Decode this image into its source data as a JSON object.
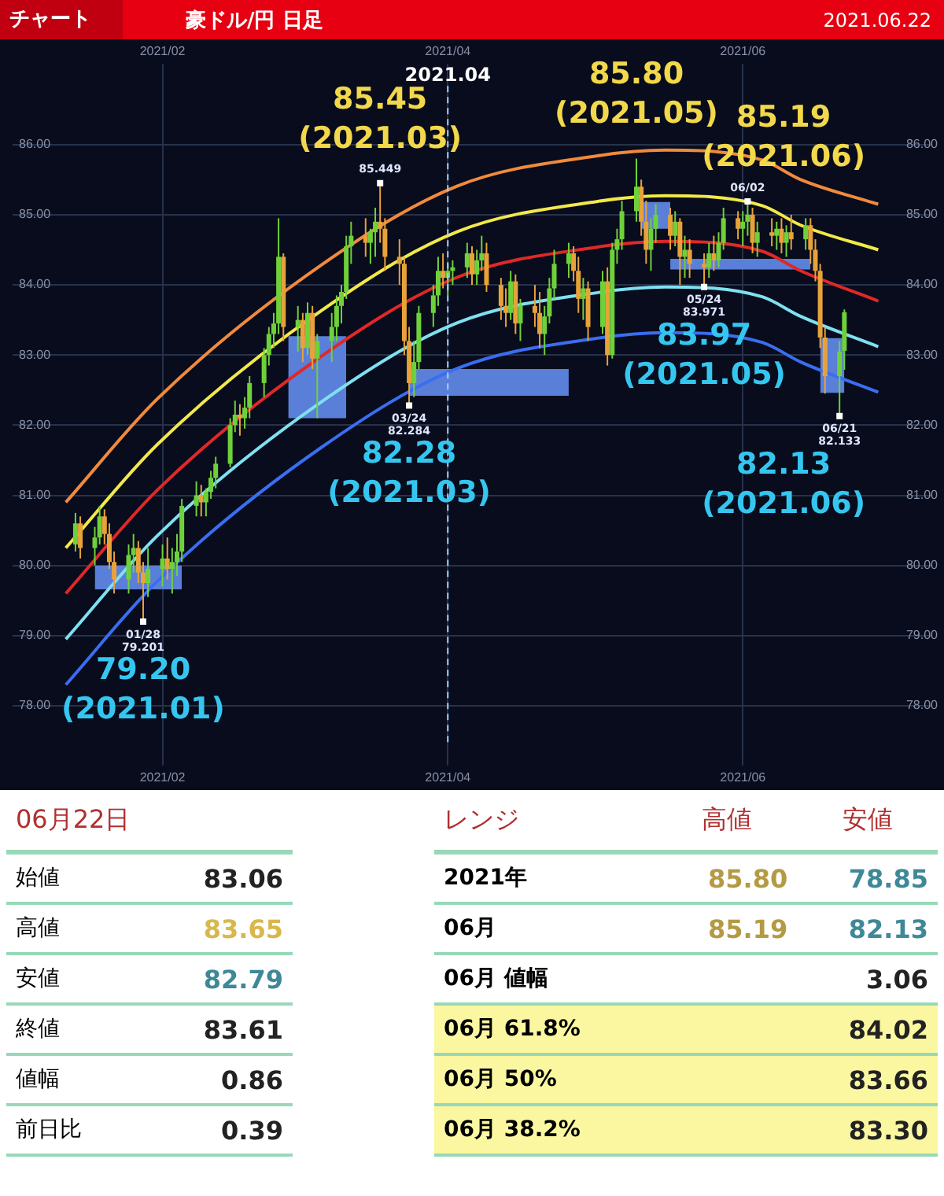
{
  "chart_data": [
    {
      "type": "candlestick",
      "title": "豪ドル/円 日足",
      "subtitle": "2021.06.22",
      "colors": [
        "#6fd13a",
        "#e8a23a",
        "#6fd13a",
        "#6fd13a",
        "#e8a23a",
        "#e8a23a",
        "#e8a23a",
        "#6fd13a",
        "#6fd13a",
        "#e8a23a",
        "#e8a23a",
        "#6fd13a",
        "#6fd13a",
        "#e8a23a",
        "#6fd13a",
        "#6fd13a",
        "#6fd13a",
        "#6fd13a",
        "#e8a23a",
        "#6fd13a",
        "#6fd13a",
        "#6fd13a",
        "#6fd13a",
        "#6fd13a",
        "#e8a23a",
        "#6fd13a",
        "#6fd13a",
        "#6fd13a",
        "#6fd13a",
        "#6fd13a",
        "#6fd13a",
        "#e8a23a",
        "#6fd13a",
        "#e8a23a",
        "#6fd13a",
        "#e8a23a",
        "#6fd13a",
        "#6fd13a",
        "#6fd13a",
        "#6fd13a",
        "#6fd13a",
        "#6fd13a",
        "#e8a23a",
        "#6fd13a",
        "#6fd13a",
        "#e8a23a",
        "#e8a23a",
        "#e8a23a",
        "#e8a23a",
        "#e8a23a",
        "#6fd13a",
        "#6fd13a",
        "#6fd13a",
        "#6fd13a",
        "#e8a23a",
        "#6fd13a",
        "#6fd13a",
        "#6fd13a",
        "#e8a23a",
        "#6fd13a",
        "#6fd13a",
        "#e8a23a",
        "#e8a23a",
        "#e8a23a",
        "#6fd13a",
        "#e8a23a",
        "#6fd13a",
        "#e8a23a",
        "#e8a23a",
        "#6fd13a",
        "#6fd13a",
        "#6fd13a",
        "#6fd13a",
        "#e8a23a",
        "#e8a23a",
        "#6fd13a",
        "#e8a23a",
        "#6fd13a",
        "#e8a23a",
        "#6fd13a",
        "#6fd13a",
        "#6fd13a",
        "#6fd13a",
        "#e8a23a",
        "#e8a23a",
        "#6fd13a",
        "#6fd13a",
        "#e8a23a",
        "#6fd13a",
        "#e8a23a",
        "#6fd13a",
        "#e8a23a",
        "#e8a23a",
        "#6fd13a",
        "#e8a23a",
        "#6fd13a",
        "#6fd13a",
        "#e8a23a",
        "#6fd13a",
        "#6fd13a",
        "#e8a23a",
        "#6fd13a",
        "#e8a23a",
        "#6fd13a",
        "#e8a23a",
        "#6fd13a",
        "#e8a23a",
        "#6fd13a",
        "#e8a23a",
        "#e8a23a",
        "#e8a23a",
        "#e8a23a",
        "#6fd13a",
        "#6fd13a"
      ],
      "annotations": [
        "チャート",
        {
          "text": "79.20\n(2021.01)",
          "x": "2021-01-28",
          "y": 79.2
        },
        {
          "text": "85.45\n(2021.03)",
          "x": "2021-03-18",
          "y": 85.45
        },
        {
          "text": "82.28\n(2021.03)",
          "x": "2021-03-24",
          "y": 82.28
        },
        {
          "text": "85.80\n(2021.05)",
          "x": "2021-05-10",
          "y": 85.8
        },
        {
          "text": "83.97\n(2021.05)",
          "x": "2021-05-24",
          "y": 83.97
        },
        {
          "text": "85.19\n(2021.06)",
          "x": "2021-06-02",
          "y": 85.19
        },
        {
          "text": "82.13\n(2021.06)",
          "x": "2021-06-21",
          "y": 82.13
        },
        {
          "text": "01/28\n79.201",
          "x": "2021-01-28",
          "y": 79.2
        },
        {
          "text": "85.449",
          "x": "2021-03-18",
          "y": 85.45
        },
        {
          "text": "03/24\n82.284",
          "x": "2021-03-24",
          "y": 82.28
        },
        {
          "text": "05/24\n83.971",
          "x": "2021-05-24",
          "y": 83.97
        },
        {
          "text": "06/02",
          "x": "2021-06-02",
          "y": 85.19
        },
        {
          "text": "06/21\n82.133",
          "x": "2021-06-21",
          "y": 82.13
        }
      ],
      "x": [
        "2021-01-14",
        "2021-01-15",
        "2021-01-18",
        "2021-01-19",
        "2021-01-20",
        "2021-01-21",
        "2021-01-22",
        "2021-01-25",
        "2021-01-26",
        "2021-01-27",
        "2021-01-28",
        "2021-01-29",
        "2021-02-01",
        "2021-02-02",
        "2021-02-03",
        "2021-02-04",
        "2021-02-05",
        "2021-02-08",
        "2021-02-09",
        "2021-02-10",
        "2021-02-11",
        "2021-02-12",
        "2021-02-15",
        "2021-02-16",
        "2021-02-17",
        "2021-02-18",
        "2021-02-19",
        "2021-02-22",
        "2021-02-23",
        "2021-02-24",
        "2021-02-25",
        "2021-02-26",
        "2021-03-01",
        "2021-03-02",
        "2021-03-03",
        "2021-03-04",
        "2021-03-05",
        "2021-03-08",
        "2021-03-09",
        "2021-03-10",
        "2021-03-11",
        "2021-03-12",
        "2021-03-15",
        "2021-03-16",
        "2021-03-17",
        "2021-03-18",
        "2021-03-19",
        "2021-03-22",
        "2021-03-23",
        "2021-03-24",
        "2021-03-25",
        "2021-03-26",
        "2021-03-29",
        "2021-03-30",
        "2021-03-31",
        "2021-04-01",
        "2021-04-02",
        "2021-04-05",
        "2021-04-06",
        "2021-04-07",
        "2021-04-08",
        "2021-04-09",
        "2021-04-12",
        "2021-04-13",
        "2021-04-14",
        "2021-04-15",
        "2021-04-16",
        "2021-04-19",
        "2021-04-20",
        "2021-04-21",
        "2021-04-22",
        "2021-04-23",
        "2021-04-26",
        "2021-04-27",
        "2021-04-28",
        "2021-04-29",
        "2021-04-30",
        "2021-05-03",
        "2021-05-04",
        "2021-05-05",
        "2021-05-06",
        "2021-05-07",
        "2021-05-10",
        "2021-05-11",
        "2021-05-12",
        "2021-05-13",
        "2021-05-14",
        "2021-05-17",
        "2021-05-18",
        "2021-05-19",
        "2021-05-20",
        "2021-05-21",
        "2021-05-24",
        "2021-05-25",
        "2021-05-26",
        "2021-05-27",
        "2021-05-28",
        "2021-05-31",
        "2021-06-01",
        "2021-06-02",
        "2021-06-03",
        "2021-06-04",
        "2021-06-07",
        "2021-06-08",
        "2021-06-09",
        "2021-06-10",
        "2021-06-11",
        "2021-06-14",
        "2021-06-15",
        "2021-06-16",
        "2021-06-17",
        "2021-06-18",
        "2021-06-21",
        "2021-06-22"
      ],
      "ohlc": [
        [
          80.3,
          80.75,
          80.2,
          80.6
        ],
        [
          80.6,
          80.7,
          80.1,
          80.25
        ],
        [
          80.25,
          80.55,
          80.0,
          80.4
        ],
        [
          80.4,
          80.85,
          80.3,
          80.7
        ],
        [
          80.7,
          80.8,
          80.3,
          80.45
        ],
        [
          80.45,
          80.6,
          79.95,
          80.05
        ],
        [
          80.05,
          80.2,
          79.6,
          79.8
        ],
        [
          79.8,
          80.3,
          79.6,
          80.15
        ],
        [
          80.15,
          80.45,
          79.9,
          80.25
        ],
        [
          80.25,
          80.35,
          79.75,
          79.9
        ],
        [
          79.9,
          80.05,
          79.2,
          79.75
        ],
        [
          79.75,
          80.25,
          79.55,
          79.95
        ],
        [
          79.95,
          80.3,
          79.7,
          80.1
        ],
        [
          80.1,
          80.4,
          79.8,
          79.95
        ],
        [
          79.95,
          80.25,
          79.6,
          80.05
        ],
        [
          80.05,
          80.45,
          79.85,
          80.2
        ],
        [
          80.2,
          80.95,
          80.05,
          80.85
        ],
        [
          80.85,
          81.2,
          80.7,
          81.0
        ],
        [
          81.0,
          81.15,
          80.7,
          80.9
        ],
        [
          80.9,
          81.1,
          80.7,
          81.05
        ],
        [
          81.05,
          81.35,
          80.95,
          81.25
        ],
        [
          81.25,
          81.55,
          81.1,
          81.45
        ],
        [
          81.45,
          82.1,
          81.4,
          82.0
        ],
        [
          82.0,
          82.35,
          81.9,
          82.15
        ],
        [
          82.15,
          82.3,
          81.85,
          82.1
        ],
        [
          82.1,
          82.4,
          81.95,
          82.25
        ],
        [
          82.25,
          82.7,
          82.1,
          82.6
        ],
        [
          82.6,
          83.1,
          82.4,
          83.0
        ],
        [
          83.0,
          83.4,
          82.85,
          83.3
        ],
        [
          83.3,
          83.6,
          83.1,
          83.45
        ],
        [
          83.45,
          84.95,
          83.3,
          84.4
        ],
        [
          84.4,
          84.45,
          83.2,
          83.4
        ],
        [
          83.4,
          83.7,
          83.05,
          83.5
        ],
        [
          83.5,
          83.6,
          82.9,
          83.1
        ],
        [
          83.1,
          83.75,
          83.0,
          83.6
        ],
        [
          83.6,
          83.7,
          82.8,
          82.95
        ],
        [
          82.95,
          83.3,
          82.1,
          83.2
        ],
        [
          83.2,
          83.6,
          82.9,
          83.4
        ],
        [
          83.4,
          83.85,
          83.2,
          83.7
        ],
        [
          83.7,
          84.0,
          83.45,
          83.9
        ],
        [
          83.9,
          84.7,
          83.8,
          84.55
        ],
        [
          84.55,
          84.9,
          84.3,
          84.7
        ],
        [
          84.7,
          84.95,
          84.4,
          84.6
        ],
        [
          84.6,
          84.8,
          84.3,
          84.75
        ],
        [
          84.75,
          85.1,
          84.4,
          84.9
        ],
        [
          84.9,
          85.45,
          84.6,
          84.8
        ],
        [
          84.8,
          84.95,
          84.2,
          84.4
        ],
        [
          84.4,
          84.65,
          84.0,
          84.3
        ],
        [
          84.3,
          84.4,
          83.0,
          83.2
        ],
        [
          83.2,
          83.4,
          82.28,
          82.6
        ],
        [
          82.6,
          83.2,
          82.4,
          82.9
        ],
        [
          82.9,
          83.7,
          82.8,
          83.6
        ],
        [
          83.6,
          84.0,
          83.4,
          83.85
        ],
        [
          83.85,
          84.4,
          83.7,
          84.2
        ],
        [
          84.2,
          84.45,
          83.95,
          84.1
        ],
        [
          84.1,
          84.3,
          83.85,
          84.2
        ],
        [
          84.2,
          84.35,
          84.0,
          84.25
        ],
        [
          84.25,
          84.6,
          84.1,
          84.45
        ],
        [
          84.45,
          84.55,
          84.0,
          84.15
        ],
        [
          84.15,
          84.5,
          84.0,
          84.35
        ],
        [
          84.35,
          84.7,
          84.2,
          84.45
        ],
        [
          84.45,
          84.6,
          83.9,
          84.0
        ],
        [
          84.0,
          84.1,
          83.5,
          83.7
        ],
        [
          83.7,
          83.95,
          83.4,
          83.6
        ],
        [
          83.6,
          84.2,
          83.5,
          84.05
        ],
        [
          84.05,
          84.15,
          83.3,
          83.45
        ],
        [
          83.45,
          83.8,
          83.2,
          83.7
        ],
        [
          83.7,
          84.0,
          83.4,
          83.6
        ],
        [
          83.6,
          83.9,
          83.1,
          83.3
        ],
        [
          83.3,
          83.7,
          83.0,
          83.55
        ],
        [
          83.55,
          84.1,
          83.45,
          83.95
        ],
        [
          83.95,
          84.5,
          83.8,
          84.3
        ],
        [
          84.3,
          84.6,
          84.1,
          84.45
        ],
        [
          84.45,
          84.55,
          84.05,
          84.2
        ],
        [
          84.2,
          84.4,
          83.6,
          83.8
        ],
        [
          83.8,
          84.1,
          83.5,
          83.95
        ],
        [
          83.95,
          84.05,
          83.2,
          83.4
        ],
        [
          83.4,
          84.2,
          83.3,
          84.05
        ],
        [
          84.05,
          84.25,
          82.85,
          83.0
        ],
        [
          83.0,
          84.6,
          82.95,
          84.5
        ],
        [
          84.5,
          84.8,
          84.3,
          84.65
        ],
        [
          84.65,
          85.2,
          84.5,
          85.05
        ],
        [
          85.05,
          85.8,
          84.9,
          85.4
        ],
        [
          85.4,
          85.5,
          84.7,
          84.9
        ],
        [
          84.9,
          85.2,
          84.3,
          84.5
        ],
        [
          84.5,
          84.95,
          84.2,
          84.8
        ],
        [
          84.8,
          85.15,
          84.6,
          85.0
        ],
        [
          85.0,
          85.1,
          84.5,
          84.7
        ],
        [
          84.7,
          85.05,
          84.55,
          84.9
        ],
        [
          84.9,
          84.95,
          84.0,
          84.4
        ],
        [
          84.4,
          84.7,
          84.1,
          84.5
        ],
        [
          84.5,
          84.65,
          84.1,
          84.3
        ],
        [
          84.3,
          84.45,
          83.97,
          84.25
        ],
        [
          84.25,
          84.6,
          84.1,
          84.45
        ],
        [
          84.45,
          84.7,
          84.2,
          84.35
        ],
        [
          84.35,
          84.75,
          84.25,
          84.6
        ],
        [
          84.6,
          85.1,
          84.5,
          84.95
        ],
        [
          84.95,
          85.05,
          84.65,
          84.8
        ],
        [
          84.8,
          85.05,
          84.55,
          84.9
        ],
        [
          84.9,
          85.19,
          84.7,
          85.0
        ],
        [
          85.0,
          85.1,
          84.45,
          84.6
        ],
        [
          84.6,
          84.9,
          84.4,
          84.75
        ],
        [
          84.75,
          84.95,
          84.55,
          84.7
        ],
        [
          84.7,
          84.9,
          84.5,
          84.8
        ],
        [
          84.8,
          84.95,
          84.45,
          84.6
        ],
        [
          84.6,
          84.85,
          84.4,
          84.75
        ],
        [
          84.75,
          85.0,
          84.5,
          84.65
        ],
        [
          84.65,
          84.95,
          84.5,
          84.85
        ],
        [
          84.85,
          84.95,
          84.3,
          84.5
        ],
        [
          84.5,
          84.65,
          84.05,
          84.2
        ],
        [
          84.2,
          84.3,
          83.1,
          83.25
        ],
        [
          83.25,
          83.4,
          82.45,
          82.7
        ],
        [
          82.7,
          83.2,
          82.13,
          83.05
        ],
        [
          83.06,
          83.65,
          82.79,
          83.61
        ]
      ],
      "series": [
        {
          "type": "area",
          "color": "#5a7fd8",
          "x": [
            "2021-01-18",
            "2021-02-05"
          ],
          "values": [
            null,
            null
          ],
          "upper": [
            80.0,
            80.0
          ],
          "lower": [
            79.66,
            79.66
          ]
        },
        {
          "type": "area",
          "color": "#5a7fd8",
          "x": [
            "2021-02-27",
            "2021-03-11"
          ],
          "values": [
            null,
            null
          ],
          "upper": [
            83.27,
            83.27
          ],
          "lower": [
            82.1,
            82.1
          ]
        },
        {
          "type": "area",
          "color": "#5a7fd8",
          "x": [
            "2021-03-24",
            "2021-04-26"
          ],
          "values": [
            null,
            null
          ],
          "upper": [
            82.8,
            82.8
          ],
          "lower": [
            82.42,
            82.42
          ]
        },
        {
          "type": "area",
          "color": "#5a7fd8",
          "x": [
            "2021-05-11",
            "2021-05-17"
          ],
          "values": [
            null,
            null
          ],
          "upper": [
            85.18,
            85.18
          ],
          "lower": [
            84.8,
            84.8
          ]
        },
        {
          "type": "area",
          "color": "#5a7fd8",
          "x": [
            "2021-05-17",
            "2021-06-15"
          ],
          "values": [
            null,
            null
          ],
          "upper": [
            84.37,
            84.37
          ],
          "lower": [
            84.22,
            84.22
          ]
        },
        {
          "type": "area",
          "color": "#5a7fd8",
          "x": [
            "2021-06-17",
            "2021-06-22"
          ],
          "values": [
            null,
            null
          ],
          "upper": [
            83.24,
            83.24
          ],
          "lower": [
            82.46,
            82.46
          ]
        },
        {
          "type": "line",
          "color": "#f08a3c",
          "x": [
            "2021-01-12",
            "2021-01-31",
            "2021-03-06",
            "2021-04-03",
            "2021-05-02",
            "2021-05-16",
            "2021-06-05",
            "2021-06-13",
            "2021-06-29"
          ],
          "values": [
            80.9,
            82.38,
            84.29,
            85.41,
            85.84,
            85.92,
            85.78,
            85.5,
            85.15
          ]
        },
        {
          "type": "line",
          "color": "#f2e94a",
          "x": [
            "2021-01-12",
            "2021-01-31",
            "2021-03-06",
            "2021-04-03",
            "2021-05-02",
            "2021-05-16",
            "2021-06-05",
            "2021-06-13",
            "2021-06-29"
          ],
          "values": [
            80.25,
            81.73,
            83.64,
            84.76,
            85.19,
            85.27,
            85.13,
            84.85,
            84.5
          ]
        },
        {
          "type": "line",
          "color": "#e02828",
          "x": [
            "2021-01-12",
            "2021-01-31",
            "2021-03-06",
            "2021-04-03",
            "2021-05-02",
            "2021-05-16",
            "2021-06-05",
            "2021-06-13",
            "2021-06-29"
          ],
          "values": [
            79.6,
            81.08,
            82.99,
            84.11,
            84.54,
            84.62,
            84.48,
            84.2,
            83.77
          ]
        },
        {
          "type": "line",
          "color": "#7fe0f0",
          "x": [
            "2021-01-12",
            "2021-01-31",
            "2021-03-06",
            "2021-04-03",
            "2021-05-02",
            "2021-05-16",
            "2021-06-05",
            "2021-06-13",
            "2021-06-29"
          ],
          "values": [
            78.95,
            80.43,
            82.34,
            83.46,
            83.89,
            83.97,
            83.83,
            83.55,
            83.12
          ]
        },
        {
          "type": "line",
          "color": "#3a6ef0",
          "x": [
            "2021-01-12",
            "2021-01-31",
            "2021-03-06",
            "2021-04-03",
            "2021-05-02",
            "2021-05-16",
            "2021-06-05",
            "2021-06-13",
            "2021-06-29"
          ],
          "values": [
            78.3,
            79.78,
            81.69,
            82.81,
            83.24,
            83.32,
            83.18,
            82.9,
            82.47
          ]
        }
      ],
      "ref_lines": [
        {
          "axis": "x",
          "value": "2021-04-01",
          "label": "2021.04",
          "color": "#9fd0ff",
          "line_style": "dashed"
        }
      ],
      "xlim": [
        "2021-01-01",
        "2021-07-10"
      ],
      "xticks": [
        {
          "value": "2021-02-01",
          "label": "2021/02"
        },
        {
          "value": "2021-04-01",
          "label": "2021/04"
        },
        {
          "value": "2021-06-01",
          "label": "2021/06"
        }
      ],
      "x2lim": [
        "2021-01-01",
        "2021-07-10"
      ],
      "x2ticks": [
        {
          "value": "2021-02-01",
          "label": "2021/02"
        },
        {
          "value": "2021-04-01",
          "label": "2021/04"
        },
        {
          "value": "2021-06-01",
          "label": "2021/06"
        }
      ],
      "ylim": [
        77.15,
        87.15
      ],
      "yticks": [
        {
          "value": 78,
          "label": "78.00"
        },
        {
          "value": 79,
          "label": "79.00"
        },
        {
          "value": 80,
          "label": "80.00"
        },
        {
          "value": 81,
          "label": "81.00"
        },
        {
          "value": 82,
          "label": "82.00"
        },
        {
          "value": 83,
          "label": "83.00"
        },
        {
          "value": 84,
          "label": "84.00"
        },
        {
          "value": 85,
          "label": "85.00"
        },
        {
          "value": 86,
          "label": "86.00"
        }
      ],
      "y2lim": [
        77.15,
        87.15
      ],
      "y2ticks": [
        {
          "value": 78,
          "label": "78.00"
        },
        {
          "value": 79,
          "label": "79.00"
        },
        {
          "value": 80,
          "label": "80.00"
        },
        {
          "value": 81,
          "label": "81.00"
        },
        {
          "value": 82,
          "label": "82.00"
        },
        {
          "value": 83,
          "label": "83.00"
        },
        {
          "value": 84,
          "label": "84.00"
        },
        {
          "value": 85,
          "label": "85.00"
        },
        {
          "value": 86,
          "label": "86.00"
        }
      ],
      "grid": true,
      "legend": false
    },
    {
      "type": "other",
      "title": "06月22日",
      "categories": [
        "始値",
        "高値",
        "安値",
        "終値",
        "値幅",
        "前日比"
      ],
      "values": [
        83.06,
        83.65,
        82.79,
        83.61,
        0.86,
        0.39
      ],
      "colors": [
        "#222222",
        "#d8b84c",
        "#3f8898",
        "#222222",
        "#222222",
        "#222222"
      ],
      "data_labels": true
    },
    {
      "type": "other",
      "title": "レンジ",
      "categories": [
        "2021年",
        "06月",
        "06月 値幅",
        "06月 61.8%",
        "06月 50%",
        "06月 38.2%"
      ],
      "series": [
        {
          "name": "高値",
          "colors": [
            "#b49a44",
            "#b49a44",
            null,
            null,
            null,
            null
          ],
          "values": [
            85.8,
            85.19,
            null,
            null,
            null,
            null
          ],
          "value_labels": [
            "85.80",
            "85.19",
            null,
            null,
            null,
            null
          ]
        },
        {
          "name": "安値",
          "colors": [
            "#3f8898",
            "#3f8898",
            null,
            null,
            null,
            null
          ],
          "values": [
            78.85,
            82.13,
            3.06,
            84.02,
            83.66,
            83.3
          ],
          "value_labels": [
            "78.85",
            "82.13",
            "3.06",
            "84.02",
            "83.66",
            "83.30"
          ]
        }
      ]
    }
  ]
}
